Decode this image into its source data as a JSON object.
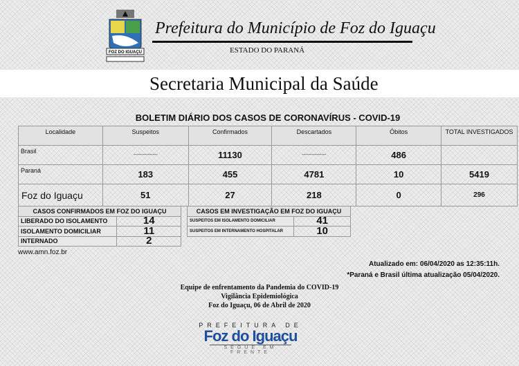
{
  "header": {
    "title": "Prefeitura do Município de Foz do Iguaçu",
    "subtitle": "ESTADO DO PARANÁ",
    "crest_text": "FOZ DO IGUAÇU",
    "department": "Secretaria Municipal da Saúde"
  },
  "bulletin": {
    "title": "BOLETIM DIÁRIO DOS CASOS DE CORONAVÍRUS - COVID-19",
    "columns": [
      "Localidade",
      "Suspeitos",
      "Confirmados",
      "Descartados",
      "Óbitos",
      "TOTAL INVESTIGADOS"
    ],
    "rows": [
      [
        "Brasil",
        "---------------",
        "11130",
        "---------------",
        "486",
        ""
      ],
      [
        "Paraná",
        "183",
        "455",
        "4781",
        "10",
        "5419"
      ],
      [
        "Foz do Iguaçu",
        "51",
        "27",
        "218",
        "0",
        "296"
      ]
    ]
  },
  "confirmed": {
    "title": "CASOS CONFIRMADOS EM FOZ DO IGUAÇU",
    "rows": [
      [
        "LIBERADO DO ISOLAMENTO",
        "14"
      ],
      [
        "ISOLAMENTO DOMICILIAR",
        "11"
      ],
      [
        "INTERNADO",
        "2"
      ]
    ]
  },
  "investigation": {
    "title": "CASOS EM INVESTIGAÇÃO EM FOZ DO IGUAÇU",
    "rows": [
      [
        "SUSPEITOS EM ISOLAMENTO DOMICILIAR",
        "41"
      ],
      [
        "SUSPEITOS EM INTERNAMENTO HOSPITALAR",
        "10"
      ]
    ]
  },
  "website": "www.amn.foz.br",
  "updated": "Atualizado em: 06/04/2020 as 12:35:11h.",
  "note": "*Paraná e Brasil última atualização 05/04/2020.",
  "footer": {
    "line1": "Equipe de enfrentamento da Pandemia do COVID-19",
    "line2": "Vigilância Epidemiológica",
    "line3": "Foz do Iguaçu, 06 de Abril de 2020"
  },
  "logo": {
    "top": "PREFEITURA DE",
    "main": "Foz do Iguaçu",
    "tagline": "SEGUE EM FRENTE",
    "color": "#1d4f9c"
  }
}
